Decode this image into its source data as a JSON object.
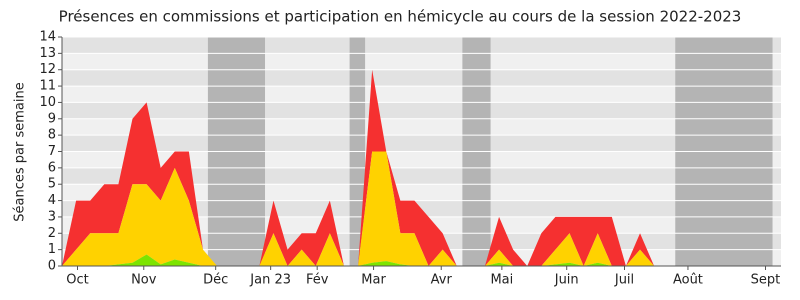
{
  "chart_data": {
    "type": "stacked_area",
    "title": "Présences en commissions et participation en hémicycle au cours de la session 2022-2023",
    "ylabel": "Séances par semaine",
    "x": [
      0,
      1,
      2,
      3,
      4,
      5,
      6,
      7,
      8,
      9,
      10,
      11,
      12,
      13,
      14,
      15,
      16,
      17,
      18,
      19,
      20,
      21,
      22,
      23,
      24,
      25,
      26,
      27,
      28,
      29,
      30,
      31,
      32,
      33,
      34,
      35,
      36,
      37,
      38,
      39,
      40,
      41,
      42,
      43,
      44,
      45,
      46,
      47,
      48,
      49,
      50,
      51
    ],
    "series": [
      {
        "color": "#7de400",
        "values": [
          0,
          0,
          0,
          0,
          0.1,
          0.2,
          0.7,
          0.1,
          0.4,
          0.2,
          0,
          0,
          0,
          0,
          0,
          0,
          0,
          0,
          0,
          0,
          0,
          0,
          0.2,
          0.3,
          0.1,
          0,
          0,
          0,
          0,
          0,
          0,
          0.2,
          0,
          0,
          0,
          0.1,
          0.2,
          0,
          0.2,
          0,
          0,
          0,
          0,
          0,
          0,
          0,
          0,
          0,
          0,
          0,
          0,
          0
        ]
      },
      {
        "color": "#ffd200",
        "values": [
          0,
          1,
          2,
          2,
          1.9,
          4.8,
          4.3,
          3.9,
          5.6,
          3.8,
          1,
          0,
          0,
          0,
          0,
          2,
          0,
          1,
          0,
          2,
          0,
          0,
          6.8,
          6.7,
          1.9,
          2,
          0,
          1,
          0,
          0,
          0,
          0.8,
          0,
          0,
          0,
          0.9,
          1.8,
          0,
          1.8,
          0,
          0,
          1,
          0,
          0,
          0,
          0,
          0,
          0,
          0,
          0,
          0,
          0
        ]
      },
      {
        "color": "#f53030",
        "values": [
          0,
          3,
          2,
          3,
          3,
          4,
          5,
          2,
          1,
          3,
          0,
          0,
          0,
          0,
          0,
          2,
          1,
          1,
          2,
          2,
          0,
          0,
          5,
          0,
          2,
          2,
          3,
          1,
          0,
          0,
          0,
          2,
          1,
          0,
          2,
          2,
          1,
          3,
          1,
          3,
          0,
          1,
          0,
          0,
          0,
          0,
          0,
          0,
          0,
          0,
          0,
          0
        ]
      }
    ],
    "shaded": [
      [
        10.35,
        14.4
      ],
      [
        20.4,
        21.5
      ],
      [
        28.4,
        30.4
      ],
      [
        43.5,
        50.4
      ]
    ],
    "xlim": [
      0,
      51
    ],
    "xticks": [
      {
        "value": 1.1,
        "label": "Oct"
      },
      {
        "value": 5.8,
        "label": "Nov"
      },
      {
        "value": 10.9,
        "label": "Déc"
      },
      {
        "value": 14.8,
        "label": "Jan 23"
      },
      {
        "value": 18.1,
        "label": "Fév"
      },
      {
        "value": 22.1,
        "label": "Mar"
      },
      {
        "value": 26.9,
        "label": "Avr"
      },
      {
        "value": 31.2,
        "label": "Mai"
      },
      {
        "value": 35.8,
        "label": "Juin"
      },
      {
        "value": 39.9,
        "label": "Juil"
      },
      {
        "value": 44.4,
        "label": "Août"
      },
      {
        "value": 49.9,
        "label": "Sept"
      }
    ],
    "ylim": [
      0,
      14
    ],
    "yticks": [
      0,
      1,
      2,
      3,
      4,
      5,
      6,
      7,
      8,
      9,
      10,
      11,
      12,
      13,
      14
    ],
    "grid": true
  }
}
